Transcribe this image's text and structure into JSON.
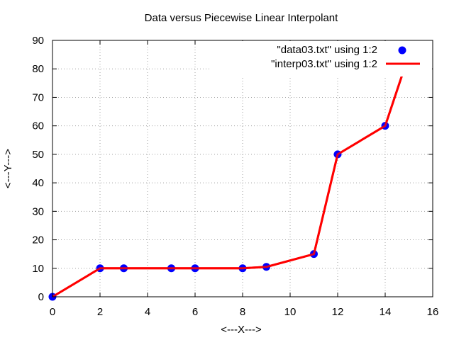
{
  "chart_data": {
    "type": "line",
    "title": "Data versus Piecewise Linear Interpolant",
    "xlabel": "<---X--->",
    "ylabel": "<---Y--->",
    "xlim": [
      0,
      16
    ],
    "ylim": [
      0,
      90
    ],
    "xticks": [
      0,
      2,
      4,
      6,
      8,
      10,
      12,
      14,
      16
    ],
    "yticks": [
      0,
      10,
      20,
      30,
      40,
      50,
      60,
      70,
      80,
      90
    ],
    "grid": true,
    "legend_position": "top-right",
    "series": [
      {
        "name": "\"data03.txt\" using 1:2",
        "style": "points",
        "color": "#0000ff",
        "x": [
          0,
          2,
          3,
          5,
          6,
          8,
          9,
          11,
          12,
          14,
          15
        ],
        "y": [
          0,
          10,
          10,
          10,
          10,
          10,
          10.5,
          15,
          50,
          60,
          85
        ]
      },
      {
        "name": "\"interp03.txt\" using 1:2",
        "style": "line",
        "color": "#ff0000",
        "x": [
          0,
          2,
          3,
          5,
          6,
          8,
          9,
          11,
          12,
          14,
          15
        ],
        "y": [
          0,
          10,
          10,
          10,
          10,
          10,
          10.5,
          15,
          50,
          60,
          85
        ]
      }
    ]
  }
}
